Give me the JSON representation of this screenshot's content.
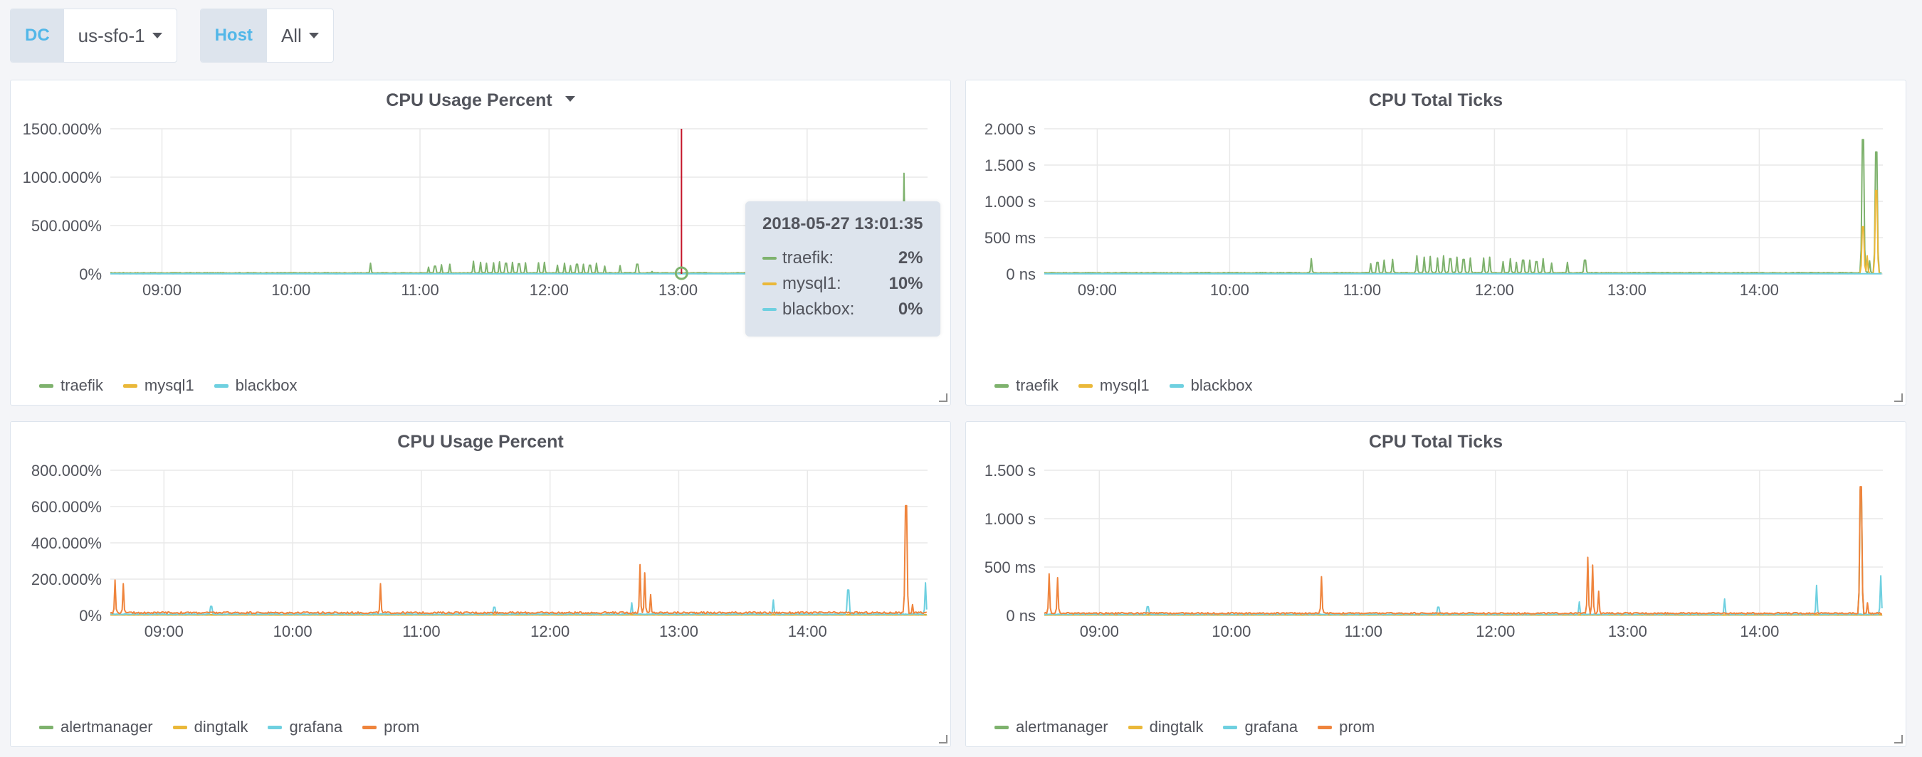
{
  "variables": [
    {
      "label": "DC",
      "value": "us-sfo-1"
    },
    {
      "label": "Host",
      "value": "All"
    }
  ],
  "colors": {
    "traefik": "#7eb26d",
    "mysql1": "#eab839",
    "blackbox": "#6ed0e0",
    "alertmanager": "#7eb26d",
    "dingtalk": "#eab839",
    "grafana": "#6ed0e0",
    "prom": "#ef843c",
    "crosshair": "#c4162a"
  },
  "tooltip": {
    "time": "2018-05-27 13:01:35",
    "rows": [
      {
        "name": "traefik:",
        "value": "2%",
        "color": "#7eb26d"
      },
      {
        "name": "mysql1:",
        "value": "10%",
        "color": "#eab839"
      },
      {
        "name": "blackbox:",
        "value": "0%",
        "color": "#6ed0e0"
      }
    ]
  },
  "chart_data": [
    {
      "type": "line",
      "title": "CPU Usage Percent",
      "has_menu": true,
      "x_ticks": [
        "09:00",
        "10:00",
        "11:00",
        "12:00",
        "13:00",
        "14:00"
      ],
      "y_ticks": [
        "0%",
        "500.000%",
        "1000.000%",
        "1500.000%"
      ],
      "ylim": [
        0,
        1500
      ],
      "xlim": [
        "08:36",
        "14:56"
      ],
      "grid": true,
      "legend_position": "bottom-left",
      "crosshair_x": "13:01:35",
      "series": [
        {
          "name": "traefik",
          "color": "#7eb26d",
          "baseline": 8,
          "noise": 6,
          "peaks": [
            [
              "10:37",
              110
            ],
            [
              "11:04",
              70
            ],
            [
              "11:07",
              80
            ],
            [
              "11:10",
              95
            ],
            [
              "11:14",
              100
            ],
            [
              "11:25",
              130
            ],
            [
              "11:28",
              120
            ],
            [
              "11:31",
              110
            ],
            [
              "11:34",
              115
            ],
            [
              "11:37",
              125
            ],
            [
              "11:40",
              110
            ],
            [
              "11:43",
              120
            ],
            [
              "11:46",
              105
            ],
            [
              "11:49",
              115
            ],
            [
              "11:55",
              115
            ],
            [
              "11:58",
              120
            ],
            [
              "12:04",
              90
            ],
            [
              "12:07",
              110
            ],
            [
              "12:10",
              85
            ],
            [
              "12:13",
              100
            ],
            [
              "12:16",
              100
            ],
            [
              "12:19",
              90
            ],
            [
              "12:22",
              110
            ],
            [
              "12:26",
              80
            ],
            [
              "12:33",
              85
            ],
            [
              "12:41",
              100
            ],
            [
              "12:48",
              25
            ],
            [
              "14:45",
              1040
            ],
            [
              "14:46",
              30
            ]
          ]
        },
        {
          "name": "mysql1",
          "color": "#eab839",
          "baseline": 3,
          "noise": 2,
          "peaks": []
        },
        {
          "name": "blackbox",
          "color": "#6ed0e0",
          "baseline": 1,
          "noise": 1,
          "peaks": []
        }
      ]
    },
    {
      "type": "line",
      "title": "CPU Total Ticks",
      "has_menu": false,
      "x_ticks": [
        "09:00",
        "10:00",
        "11:00",
        "12:00",
        "13:00",
        "14:00"
      ],
      "y_ticks": [
        "0 ns",
        "500 ms",
        "1.000 s",
        "1.500 s",
        "2.000 s"
      ],
      "ylim": [
        0,
        2000
      ],
      "xlim": [
        "08:36",
        "14:56"
      ],
      "grid": true,
      "legend_position": "bottom-left",
      "series": [
        {
          "name": "traefik",
          "color": "#7eb26d",
          "baseline": 12,
          "noise": 8,
          "peaks": [
            [
              "10:37",
              210
            ],
            [
              "11:04",
              140
            ],
            [
              "11:07",
              160
            ],
            [
              "11:10",
              190
            ],
            [
              "11:14",
              200
            ],
            [
              "11:25",
              250
            ],
            [
              "11:28",
              230
            ],
            [
              "11:31",
              240
            ],
            [
              "11:34",
              220
            ],
            [
              "11:37",
              250
            ],
            [
              "11:40",
              210
            ],
            [
              "11:43",
              230
            ],
            [
              "11:46",
              200
            ],
            [
              "11:49",
              220
            ],
            [
              "11:55",
              220
            ],
            [
              "11:58",
              230
            ],
            [
              "12:04",
              170
            ],
            [
              "12:07",
              210
            ],
            [
              "12:10",
              160
            ],
            [
              "12:13",
              190
            ],
            [
              "12:16",
              190
            ],
            [
              "12:19",
              170
            ],
            [
              "12:22",
              210
            ],
            [
              "12:26",
              150
            ],
            [
              "12:33",
              160
            ],
            [
              "12:41",
              190
            ],
            [
              "14:47",
              1850
            ],
            [
              "14:48",
              200
            ],
            [
              "14:50",
              180
            ],
            [
              "14:53",
              1680
            ]
          ]
        },
        {
          "name": "mysql1",
          "color": "#eab839",
          "baseline": 4,
          "noise": 3,
          "peaks": [
            [
              "14:47",
              650
            ],
            [
              "14:49",
              250
            ],
            [
              "14:53",
              1150
            ]
          ]
        },
        {
          "name": "blackbox",
          "color": "#6ed0e0",
          "baseline": 2,
          "noise": 1,
          "peaks": []
        }
      ]
    },
    {
      "type": "line",
      "title": "CPU Usage Percent",
      "has_menu": false,
      "x_ticks": [
        "09:00",
        "10:00",
        "11:00",
        "12:00",
        "13:00",
        "14:00"
      ],
      "y_ticks": [
        "0%",
        "200.000%",
        "400.000%",
        "600.000%",
        "800.000%"
      ],
      "ylim": [
        0,
        800
      ],
      "xlim": [
        "08:35",
        "14:56"
      ],
      "grid": true,
      "legend_position": "bottom-left",
      "series": [
        {
          "name": "alertmanager",
          "color": "#7eb26d",
          "baseline": 3,
          "noise": 2,
          "peaks": []
        },
        {
          "name": "dingtalk",
          "color": "#eab839",
          "baseline": 2,
          "noise": 1,
          "peaks": []
        },
        {
          "name": "grafana",
          "color": "#6ed0e0",
          "baseline": 5,
          "noise": 4,
          "peaks": [
            [
              "09:22",
              50
            ],
            [
              "11:34",
              45
            ],
            [
              "12:38",
              70
            ],
            [
              "13:44",
              85
            ],
            [
              "14:19",
              140
            ],
            [
              "14:55",
              180
            ]
          ]
        },
        {
          "name": "prom",
          "color": "#ef843c",
          "baseline": 10,
          "noise": 10,
          "peaks": [
            [
              "08:37",
              195
            ],
            [
              "08:41",
              175
            ],
            [
              "10:41",
              175
            ],
            [
              "12:42",
              280
            ],
            [
              "12:44",
              235
            ],
            [
              "12:47",
              115
            ],
            [
              "14:46",
              605
            ],
            [
              "14:49",
              60
            ]
          ]
        }
      ]
    },
    {
      "type": "line",
      "title": "CPU Total Ticks",
      "has_menu": false,
      "x_ticks": [
        "09:00",
        "10:00",
        "11:00",
        "12:00",
        "13:00",
        "14:00"
      ],
      "y_ticks": [
        "0 ns",
        "500 ms",
        "1.000 s",
        "1.500 s"
      ],
      "ylim": [
        0,
        1500
      ],
      "xlim": [
        "08:35",
        "14:56"
      ],
      "grid": true,
      "legend_position": "bottom-left",
      "series": [
        {
          "name": "alertmanager",
          "color": "#7eb26d",
          "baseline": 5,
          "noise": 3,
          "peaks": [
            [
              "14:46",
              1300
            ]
          ]
        },
        {
          "name": "dingtalk",
          "color": "#eab839",
          "baseline": 3,
          "noise": 2,
          "peaks": []
        },
        {
          "name": "grafana",
          "color": "#6ed0e0",
          "baseline": 8,
          "noise": 6,
          "peaks": [
            [
              "09:22",
              90
            ],
            [
              "11:34",
              85
            ],
            [
              "12:38",
              140
            ],
            [
              "13:44",
              170
            ],
            [
              "14:26",
              310
            ],
            [
              "14:55",
              410
            ]
          ]
        },
        {
          "name": "prom",
          "color": "#ef843c",
          "baseline": 15,
          "noise": 15,
          "peaks": [
            [
              "08:37",
              430
            ],
            [
              "08:41",
              390
            ],
            [
              "10:41",
              400
            ],
            [
              "12:42",
              600
            ],
            [
              "12:44",
              520
            ],
            [
              "12:47",
              250
            ],
            [
              "14:46",
              1330
            ],
            [
              "14:49",
              130
            ]
          ]
        }
      ]
    }
  ]
}
